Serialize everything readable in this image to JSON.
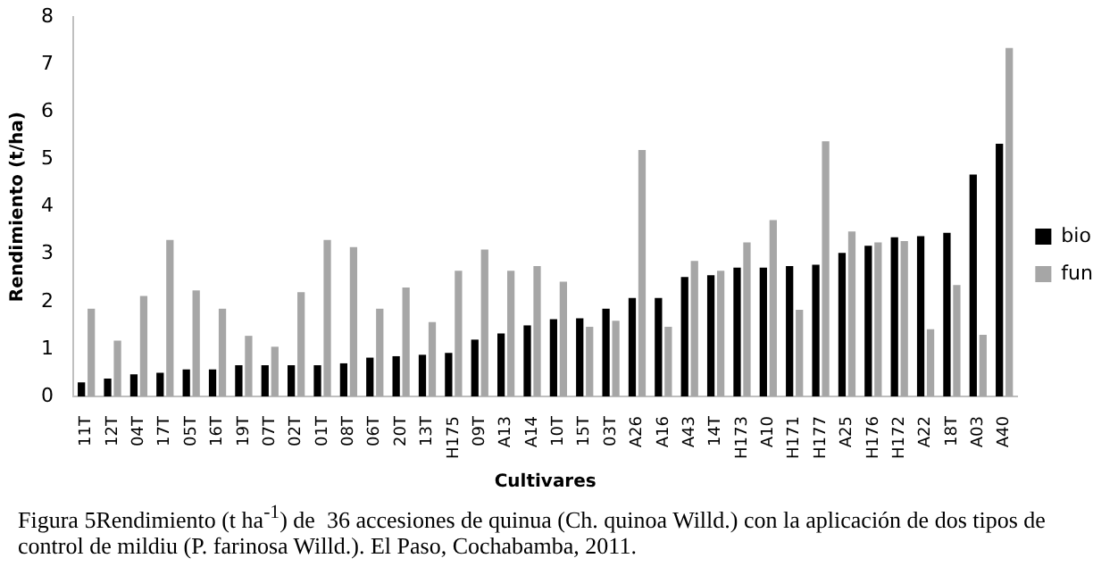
{
  "chart_data": {
    "type": "bar",
    "xlabel": "Cultivares",
    "ylabel": "Rendimiento (t/ha)",
    "categories": [
      "11T",
      "12T",
      "04T",
      "17T",
      "05T",
      "16T",
      "19T",
      "07T",
      "02T",
      "01T",
      "08T",
      "06T",
      "20T",
      "13T",
      "H175",
      "09T",
      "A13",
      "A14",
      "10T",
      "15T",
      "03T",
      "A26",
      "A16",
      "A43",
      "14T",
      "H173",
      "A10",
      "H171",
      "H177",
      "A25",
      "H176",
      "H172",
      "A22",
      "18T",
      "A03",
      "A40"
    ],
    "series": [
      {
        "name": "bio",
        "color": "#000000",
        "values": [
          0.3,
          0.38,
          0.47,
          0.5,
          0.57,
          0.57,
          0.66,
          0.66,
          0.66,
          0.66,
          0.7,
          0.82,
          0.85,
          0.88,
          0.92,
          1.2,
          1.33,
          1.5,
          1.63,
          1.65,
          1.85,
          2.08,
          2.08,
          2.52,
          2.56,
          2.72,
          2.72,
          2.75,
          2.78,
          3.03,
          3.18,
          3.36,
          3.38,
          3.45,
          4.68,
          5.33
        ]
      },
      {
        "name": "fun",
        "color": "#a6a6a6",
        "values": [
          1.85,
          1.18,
          2.12,
          3.3,
          2.24,
          1.85,
          1.28,
          1.05,
          2.2,
          3.3,
          3.15,
          1.85,
          2.3,
          1.57,
          2.65,
          3.1,
          2.65,
          2.75,
          2.42,
          1.47,
          1.6,
          5.2,
          1.47,
          2.86,
          2.65,
          3.25,
          3.72,
          1.83,
          5.38,
          3.48,
          3.25,
          3.28,
          1.42,
          2.35,
          1.3,
          7.35
        ]
      }
    ],
    "ylim": [
      0,
      8
    ],
    "yticks": [
      0,
      1,
      2,
      3,
      4,
      5,
      6,
      7,
      8
    ],
    "grid": false,
    "legend": "right",
    "annotations": [
      "Figura 5Rendimiento (t ha$^{-1}$) de  36 accesiones de quinua (Ch. quinoa Willd.) con la aplicación de dos tipos de control de mildiu (P. farinosa Willd.). El Paso, Cochabamba, 2011."
    ]
  }
}
